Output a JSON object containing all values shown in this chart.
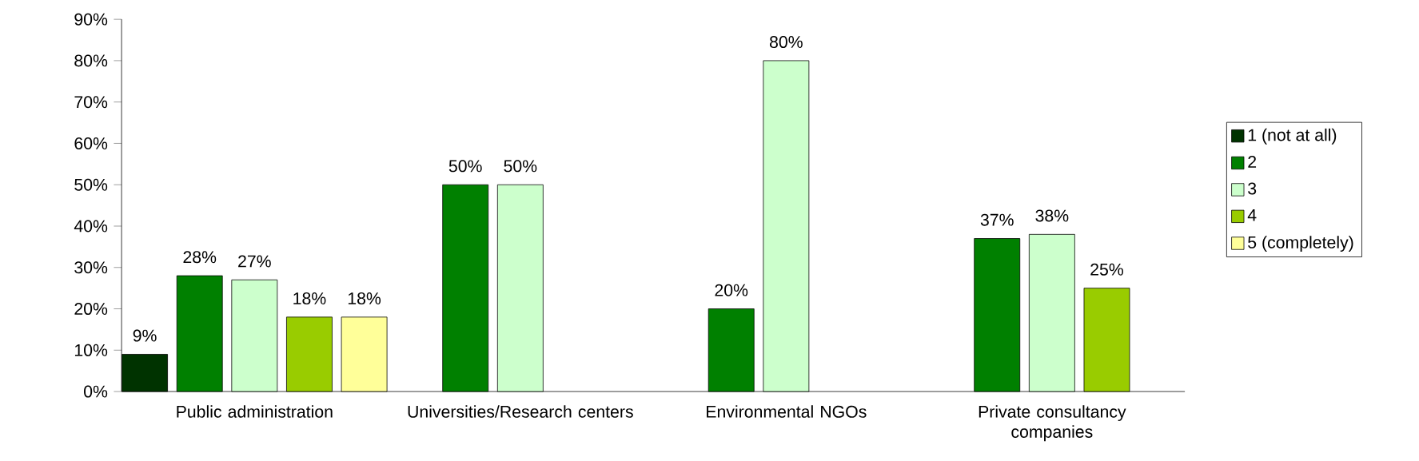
{
  "chart_data": {
    "type": "bar",
    "categories": [
      "Public administration",
      "Universities/Research centers",
      "Environmental NGOs",
      "Private consultancy companies"
    ],
    "series": [
      {
        "name": "1 (not at all)",
        "color": "#003300",
        "values": [
          9,
          null,
          null,
          null
        ],
        "value_labels": [
          "9%",
          null,
          null,
          null
        ]
      },
      {
        "name": "2",
        "color": "#008000",
        "values": [
          28,
          50,
          20,
          37
        ],
        "value_labels": [
          "28%",
          "50%",
          "20%",
          "37%"
        ]
      },
      {
        "name": "3",
        "color": "#ccffcc",
        "values": [
          27,
          50,
          80,
          38
        ],
        "value_labels": [
          "27%",
          "50%",
          "80%",
          "38%"
        ]
      },
      {
        "name": "4",
        "color": "#99cc00",
        "values": [
          18,
          null,
          null,
          25
        ],
        "value_labels": [
          "18%",
          null,
          null,
          "25%"
        ]
      },
      {
        "name": "5 (completely)",
        "color": "#ffff99",
        "values": [
          18,
          null,
          null,
          null
        ],
        "value_labels": [
          "18%",
          null,
          null,
          null
        ]
      }
    ],
    "ylim": [
      0,
      90
    ],
    "yticks": [
      {
        "value": 0,
        "label": "0%"
      },
      {
        "value": 10,
        "label": "10%"
      },
      {
        "value": 20,
        "label": "20%"
      },
      {
        "value": 30,
        "label": "30%"
      },
      {
        "value": 40,
        "label": "40%"
      },
      {
        "value": 50,
        "label": "50%"
      },
      {
        "value": 60,
        "label": "60%"
      },
      {
        "value": 70,
        "label": "70%"
      },
      {
        "value": 80,
        "label": "80%"
      },
      {
        "value": 90,
        "label": "90%"
      }
    ],
    "grid": false,
    "legend": "right"
  }
}
